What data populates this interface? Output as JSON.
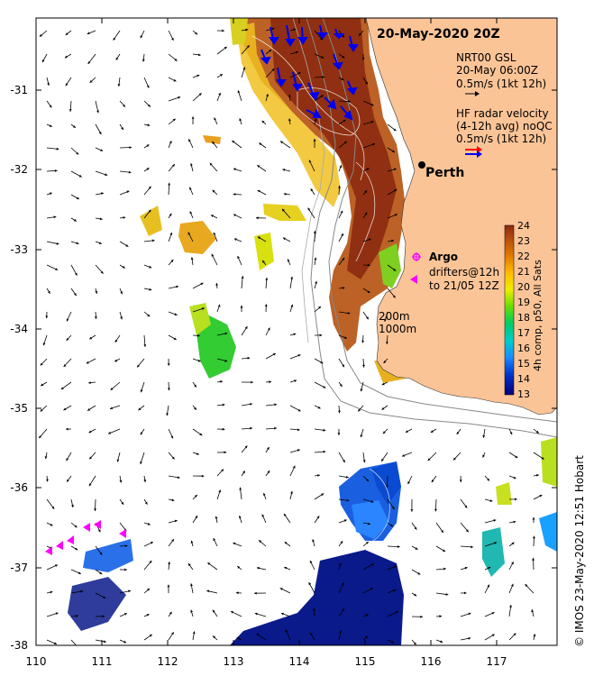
{
  "title": "20-May-2020 20Z",
  "city": "Perth",
  "credit": "© IMOS 23-May-2020 12:51 Hobart",
  "x_ticks": [
    "110",
    "111",
    "112",
    "113",
    "114",
    "115",
    "116",
    "117"
  ],
  "y_ticks": [
    "-31",
    "-32",
    "-33",
    "-34",
    "-35",
    "-36",
    "-37",
    "-38"
  ],
  "legend": {
    "gsl_line1": "NRT00 GSL",
    "gsl_line2": "20-May 06:00Z",
    "gsl_line3": "0.5m/s (1kt 12h)",
    "hf_line1": "HF radar velocity",
    "hf_line2": "(4-12h avg) noQC",
    "hf_line3": "0.5m/s (1kt 12h)",
    "argo_label": "Argo",
    "drifters_line1": "drifters@12h",
    "drifters_line2": "to 21/05 12Z",
    "isobath_200": "200m",
    "isobath_1000": "1000m"
  },
  "colorbar": {
    "title": "4h comp, p50, All Sats",
    "ticks": [
      "24",
      "23",
      "22",
      "21",
      "20",
      "19",
      "18",
      "17",
      "16",
      "15",
      "14",
      "13"
    ]
  },
  "colors": {
    "land": "#fbc497",
    "ocean": "#ffffff",
    "hf_arrow": "#0000ee",
    "hf_legend_red": "#ff0000",
    "argo": "#ff00ff"
  }
}
